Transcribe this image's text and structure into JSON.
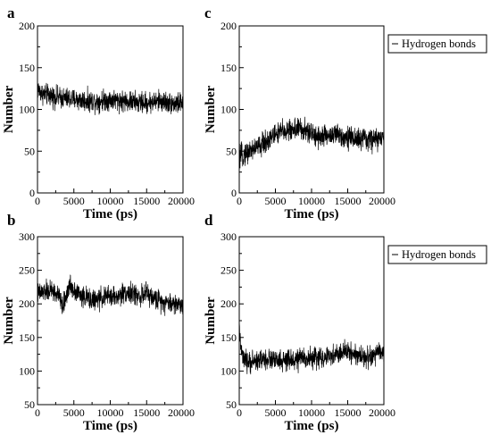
{
  "legend_label": "Hydrogen bonds",
  "chart_data": [
    {
      "panel": "a",
      "type": "line",
      "xlabel": "Time (ps)",
      "ylabel": "Number",
      "xlim": [
        0,
        20000
      ],
      "ylim": [
        0,
        200
      ],
      "xticks": [
        0,
        5000,
        10000,
        15000,
        20000
      ],
      "yticks": [
        0,
        50,
        100,
        150,
        200
      ],
      "legend": null,
      "grid": false,
      "series": [
        {
          "color": "#000000",
          "x": [
            0,
            500,
            1000,
            2000,
            3000,
            4000,
            5000,
            6000,
            7000,
            8000,
            9000,
            10000,
            11000,
            12000,
            13000,
            14000,
            15000,
            16000,
            17000,
            18000,
            19000,
            20000
          ],
          "y": [
            125,
            120,
            118,
            116,
            114,
            113,
            112,
            111,
            110,
            110,
            111,
            112,
            111,
            110,
            109,
            108,
            108,
            109,
            110,
            108,
            107,
            108
          ],
          "spread": 14
        }
      ]
    },
    {
      "panel": "b",
      "type": "line",
      "xlabel": "Time (ps)",
      "ylabel": "Number",
      "xlim": [
        0,
        20000
      ],
      "ylim": [
        50,
        300
      ],
      "xticks": [
        0,
        5000,
        10000,
        15000,
        20000
      ],
      "yticks": [
        50,
        100,
        150,
        200,
        250,
        300
      ],
      "legend": null,
      "grid": false,
      "series": [
        {
          "color": "#000000",
          "x": [
            0,
            1000,
            2000,
            3000,
            3500,
            4000,
            4500,
            5000,
            6000,
            7000,
            8000,
            9000,
            10000,
            11000,
            12000,
            13000,
            14000,
            15000,
            16000,
            17000,
            18000,
            19000,
            20000
          ],
          "y": [
            215,
            218,
            220,
            210,
            195,
            215,
            228,
            222,
            212,
            208,
            205,
            210,
            212,
            210,
            218,
            215,
            212,
            215,
            208,
            205,
            202,
            200,
            198
          ],
          "spread": 17
        }
      ]
    },
    {
      "panel": "c",
      "type": "line",
      "xlabel": "Time (ps)",
      "ylabel": "Number",
      "xlim": [
        0,
        20000
      ],
      "ylim": [
        0,
        200
      ],
      "xticks": [
        0,
        5000,
        10000,
        15000,
        20000
      ],
      "yticks": [
        0,
        50,
        100,
        150,
        200
      ],
      "legend": "top-right",
      "grid": false,
      "series": [
        {
          "name": "Hydrogen bonds",
          "color": "#000000",
          "x": [
            0,
            1000,
            2000,
            3000,
            4000,
            5000,
            6000,
            7000,
            8000,
            9000,
            10000,
            11000,
            12000,
            13000,
            14000,
            15000,
            16000,
            17000,
            18000,
            19000,
            20000
          ],
          "y": [
            42,
            48,
            53,
            57,
            64,
            70,
            74,
            75,
            78,
            74,
            71,
            68,
            68,
            70,
            69,
            67,
            65,
            64,
            64,
            65,
            64
          ],
          "spread": 15
        }
      ]
    },
    {
      "panel": "d",
      "type": "line",
      "xlabel": "Time (ps)",
      "ylabel": "Number",
      "xlim": [
        0,
        20000
      ],
      "ylim": [
        50,
        300
      ],
      "xticks": [
        0,
        5000,
        10000,
        15000,
        20000
      ],
      "yticks": [
        50,
        100,
        150,
        200,
        250,
        300
      ],
      "legend": "top-right",
      "grid": false,
      "series": [
        {
          "name": "Hydrogen bonds",
          "color": "#000000",
          "x": [
            0,
            200,
            500,
            1000,
            2000,
            3000,
            4000,
            5000,
            6000,
            7000,
            8000,
            9000,
            10000,
            11000,
            12000,
            13000,
            14000,
            15000,
            16000,
            17000,
            18000,
            19000,
            20000
          ],
          "y": [
            170,
            135,
            118,
            112,
            115,
            117,
            118,
            115,
            114,
            116,
            117,
            120,
            118,
            121,
            118,
            124,
            126,
            130,
            125,
            122,
            120,
            125,
            130
          ],
          "spread": 17
        }
      ]
    }
  ]
}
